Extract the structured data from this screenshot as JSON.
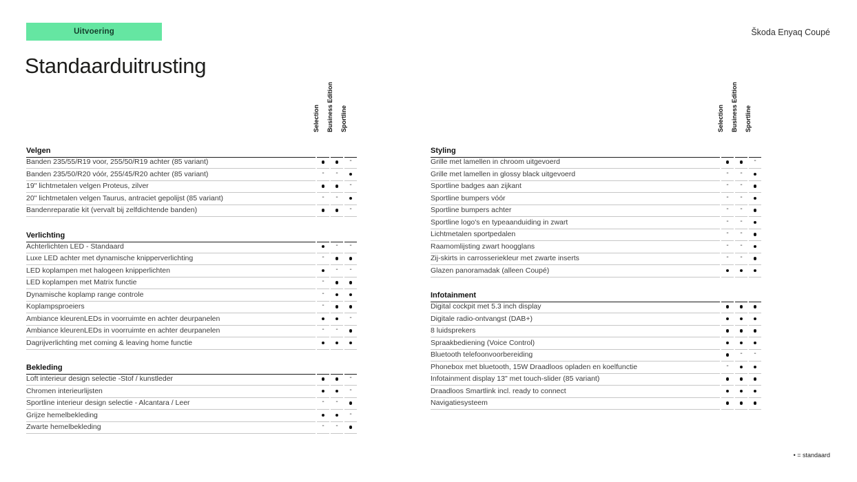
{
  "page": {
    "badge": "Uitvoering",
    "brand": "Škoda Enyaq Coupé",
    "title": "Standaarduitrusting",
    "legend": "• = standaard",
    "accent_green": "#65E6A2"
  },
  "columns": [
    "Selection",
    "Business Edition",
    "Sportline"
  ],
  "tables": [
    {
      "sections": [
        {
          "heading": "Velgen",
          "rows": [
            {
              "label": "Banden 235/55/R19 voor, 255/50/R19 achter (85 variant)",
              "values": [
                1,
                1,
                0
              ]
            },
            {
              "label": "Banden 235/50/R20 vóór, 255/45/R20 achter (85 variant)",
              "values": [
                0,
                0,
                1
              ]
            },
            {
              "label": "19\" lichtmetalen velgen Proteus, zilver",
              "values": [
                1,
                1,
                0
              ]
            },
            {
              "label": "20\" lichtmetalen velgen Taurus, antraciet gepolijst (85 variant)",
              "values": [
                0,
                0,
                1
              ]
            },
            {
              "label": "Bandenreparatie kit (vervalt bij zelfdichtende banden)",
              "values": [
                1,
                1,
                0
              ]
            }
          ]
        },
        {
          "heading": "Verlichting",
          "rows": [
            {
              "label": "Achterlichten LED - Standaard",
              "values": [
                1,
                0,
                0
              ]
            },
            {
              "label": "Luxe LED achter met dynamische knipperverlichting",
              "values": [
                0,
                1,
                1
              ]
            },
            {
              "label": "LED koplampen met halogeen knipperlichten",
              "values": [
                1,
                0,
                0
              ]
            },
            {
              "label": "LED koplampen met Matrix functie",
              "values": [
                0,
                1,
                1
              ]
            },
            {
              "label": "Dynamische koplamp range controle",
              "values": [
                0,
                1,
                1
              ]
            },
            {
              "label": "Koplampsproeiers",
              "values": [
                0,
                1,
                1
              ]
            },
            {
              "label": "Ambiance kleurenLEDs in voorruimte en achter deurpanelen",
              "values": [
                1,
                1,
                0
              ]
            },
            {
              "label": "Ambiance kleurenLEDs in voorruimte en achter deurpanelen",
              "values": [
                0,
                0,
                1
              ]
            },
            {
              "label": "Dagrijverlichting met coming & leaving home functie",
              "values": [
                1,
                1,
                1
              ]
            }
          ]
        },
        {
          "heading": "Bekleding",
          "rows": [
            {
              "label": "Loft interieur design selectie -Stof / kunstleder",
              "values": [
                1,
                1,
                0
              ]
            },
            {
              "label": "Chromen interieurlijsten",
              "values": [
                1,
                1,
                0
              ]
            },
            {
              "label": "Sportline interieur design selectie - Alcantara / Leer",
              "values": [
                0,
                0,
                1
              ]
            },
            {
              "label": "Grijze hemelbekleding",
              "values": [
                1,
                1,
                0
              ]
            },
            {
              "label": "Zwarte hemelbekleding",
              "values": [
                0,
                0,
                1
              ]
            }
          ]
        }
      ]
    },
    {
      "sections": [
        {
          "heading": "Styling",
          "rows": [
            {
              "label": "Grille met lamellen in chroom uitgevoerd",
              "values": [
                1,
                1,
                0
              ]
            },
            {
              "label": "Grille met lamellen in glossy black uitgevoerd",
              "values": [
                0,
                0,
                1
              ]
            },
            {
              "label": "Sportline badges aan zijkant",
              "values": [
                0,
                0,
                1
              ]
            },
            {
              "label": "Sportline bumpers vóór",
              "values": [
                0,
                0,
                1
              ]
            },
            {
              "label": "Sportline bumpers achter",
              "values": [
                0,
                0,
                1
              ]
            },
            {
              "label": "Sportline logo's en typeaanduiding in zwart",
              "values": [
                0,
                0,
                1
              ]
            },
            {
              "label": "Lichtmetalen sportpedalen",
              "values": [
                0,
                0,
                1
              ]
            },
            {
              "label": "Raamomlijsting zwart hoogglans",
              "values": [
                0,
                0,
                1
              ]
            },
            {
              "label": "Zij-skirts in carrosseriekleur met zwarte inserts",
              "values": [
                0,
                0,
                1
              ]
            },
            {
              "label": "Glazen panoramadak (alleen Coupé)",
              "values": [
                1,
                1,
                1
              ]
            }
          ]
        },
        {
          "heading": "Infotainment",
          "rows": [
            {
              "label": "Digital cockpit met 5.3 inch display",
              "values": [
                1,
                1,
                1
              ]
            },
            {
              "label": "Digitale radio-ontvangst (DAB+)",
              "values": [
                1,
                1,
                1
              ]
            },
            {
              "label": "8 luidsprekers",
              "values": [
                1,
                1,
                1
              ]
            },
            {
              "label": "Spraakbediening (Voice Control)",
              "values": [
                1,
                1,
                1
              ]
            },
            {
              "label": "Bluetooth telefoonvoorbereiding",
              "values": [
                1,
                0,
                0
              ]
            },
            {
              "label": "Phonebox met bluetooth, 15W Draadloos opladen en koelfunctie",
              "values": [
                0,
                1,
                1
              ]
            },
            {
              "label": "Infotainment display 13\" met touch-slider (85 variant)",
              "values": [
                1,
                1,
                1
              ]
            },
            {
              "label": "Draadloos Smartlink incl. ready to connect",
              "values": [
                1,
                1,
                1
              ]
            },
            {
              "label": "Navigatiesysteem",
              "values": [
                1,
                1,
                1
              ]
            }
          ]
        }
      ]
    }
  ]
}
